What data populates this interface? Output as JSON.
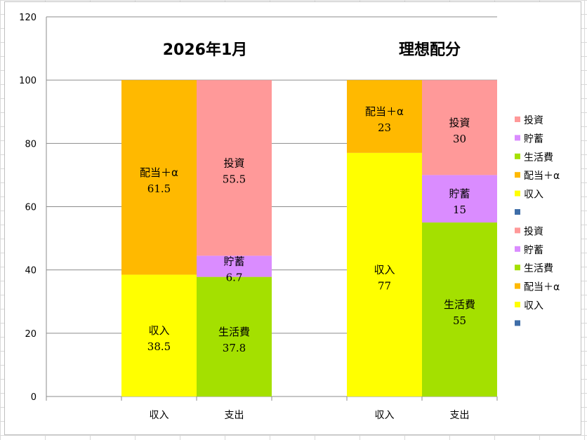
{
  "chart_data": {
    "type": "bar",
    "stacked": true,
    "ylim": [
      0,
      120
    ],
    "yticks": [
      0,
      20,
      40,
      60,
      80,
      100,
      120
    ],
    "grid": true,
    "legend_position": "right",
    "groups": [
      {
        "title": "2026年1月",
        "bars": [
          {
            "category": "収入",
            "segments": [
              {
                "name": "収入",
                "value": 38.5,
                "label": "収入",
                "value_label": "38.5"
              },
              {
                "name": "配当＋α",
                "value": 61.5,
                "label": "配当＋α",
                "value_label": "61.5"
              }
            ]
          },
          {
            "category": "支出",
            "segments": [
              {
                "name": "生活費",
                "value": 37.8,
                "label": "生活費",
                "value_label": "37.8"
              },
              {
                "name": "貯蓄",
                "value": 6.7,
                "label": "貯蓄",
                "value_label": "6.7"
              },
              {
                "name": "投資",
                "value": 55.5,
                "label": "投資",
                "value_label": "55.5"
              }
            ]
          }
        ]
      },
      {
        "title": "理想配分",
        "bars": [
          {
            "category": "収入",
            "segments": [
              {
                "name": "収入",
                "value": 77,
                "label": "収入",
                "value_label": "77"
              },
              {
                "name": "配当＋α",
                "value": 23,
                "label": "配当＋α",
                "value_label": "23"
              }
            ]
          },
          {
            "category": "支出",
            "segments": [
              {
                "name": "生活費",
                "value": 55,
                "label": "生活費",
                "value_label": "55"
              },
              {
                "name": "貯蓄",
                "value": 15,
                "label": "貯蓄",
                "value_label": "15"
              },
              {
                "name": "投資",
                "value": 30,
                "label": "投資",
                "value_label": "30"
              }
            ]
          }
        ]
      }
    ],
    "colors": {
      "収入": "#ffff00",
      "配当＋α": "#ffb900",
      "生活費": "#a4e000",
      "貯蓄": "#da8cff",
      "投資": "#ff9999",
      "blank": "#3f6ea8"
    },
    "legend": [
      {
        "label": "投資",
        "color_key": "投資"
      },
      {
        "label": "貯蓄",
        "color_key": "貯蓄"
      },
      {
        "label": "生活費",
        "color_key": "生活費"
      },
      {
        "label": "配当＋α",
        "color_key": "配当＋α"
      },
      {
        "label": "収入",
        "color_key": "収入"
      },
      {
        "label": "",
        "color_key": "blank"
      },
      {
        "label": "投資",
        "color_key": "投資"
      },
      {
        "label": "貯蓄",
        "color_key": "貯蓄"
      },
      {
        "label": "生活費",
        "color_key": "生活費"
      },
      {
        "label": "配当＋α",
        "color_key": "配当＋α"
      },
      {
        "label": "収入",
        "color_key": "収入"
      },
      {
        "label": "",
        "color_key": "blank"
      }
    ]
  }
}
